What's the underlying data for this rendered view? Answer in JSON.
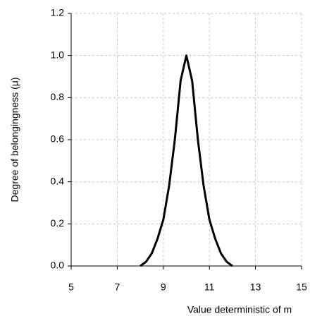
{
  "chart_data": {
    "type": "line",
    "x_label": "Value deterministic of m",
    "y_label": "Degree of belongingness (μ)",
    "x": [
      8,
      8.25,
      8.5,
      8.75,
      9,
      9.25,
      9.5,
      9.75,
      10,
      10.25,
      10.5,
      10.75,
      11,
      11.25,
      11.5,
      11.75,
      12
    ],
    "series": [
      {
        "color": "#000000",
        "values": [
          0,
          0.02,
          0.06,
          0.13,
          0.22,
          0.38,
          0.6,
          0.88,
          1.0,
          0.88,
          0.6,
          0.38,
          0.22,
          0.13,
          0.06,
          0.02,
          0
        ]
      }
    ],
    "xlim": [
      5,
      15
    ],
    "xticks": [
      5,
      7,
      9,
      11,
      13,
      15
    ],
    "ylim": [
      0,
      1.2
    ],
    "yticks": [
      {
        "value": 0,
        "label": "0.0"
      },
      0.2,
      0.4,
      0.6,
      0.8,
      {
        "value": 1,
        "label": "1.0"
      },
      1.2
    ],
    "grid": true
  }
}
